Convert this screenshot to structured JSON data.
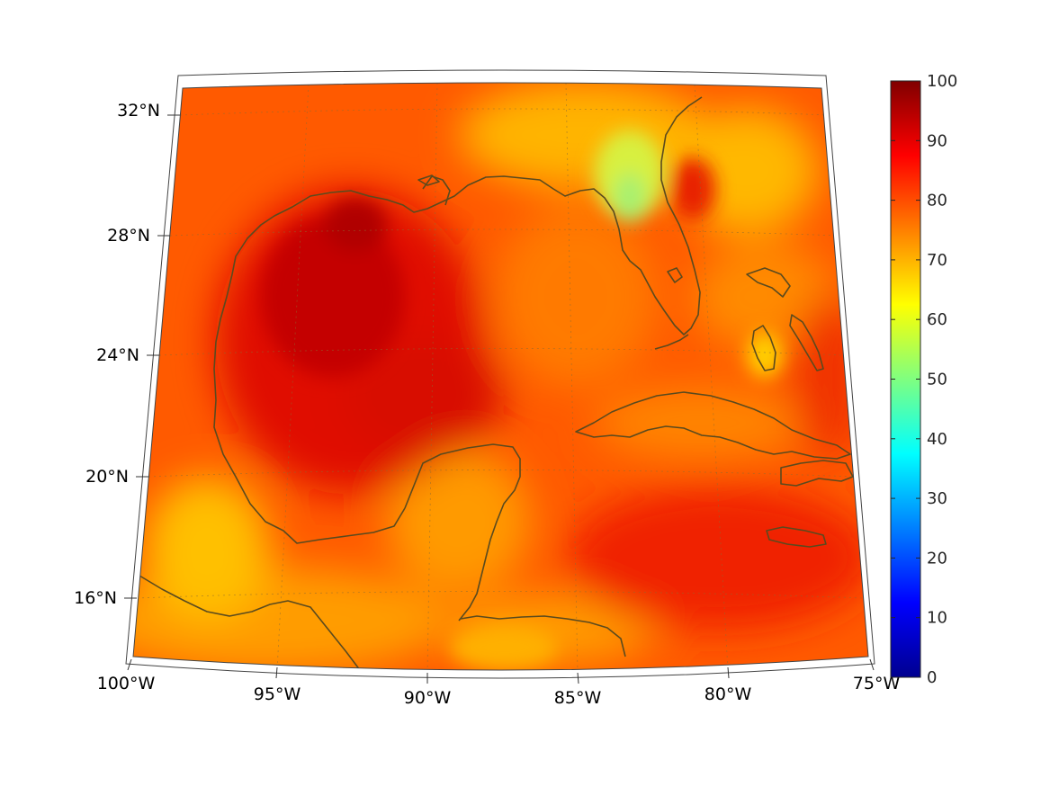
{
  "map": {
    "longitude_labels": [
      "100°W",
      "95°W",
      "90°W",
      "85°W",
      "80°W",
      "75°W"
    ],
    "latitude_labels": [
      "16°N",
      "20°N",
      "24°N",
      "28°N",
      "32°N"
    ],
    "colors": {
      "field_dark_red": "#c80000",
      "field_red": "#ee1d00",
      "field_orange_red": "#ff4a00",
      "field_orange": "#ff8a00",
      "field_yellow": "#ffd800",
      "field_green_yellow": "#c8f53a",
      "coastline": "#5a4a1e"
    }
  },
  "colorbar": {
    "min": 0,
    "max": 100,
    "ticks": [
      "0",
      "10",
      "20",
      "30",
      "40",
      "50",
      "60",
      "70",
      "80",
      "90",
      "100"
    ],
    "colormap": "jet"
  }
}
